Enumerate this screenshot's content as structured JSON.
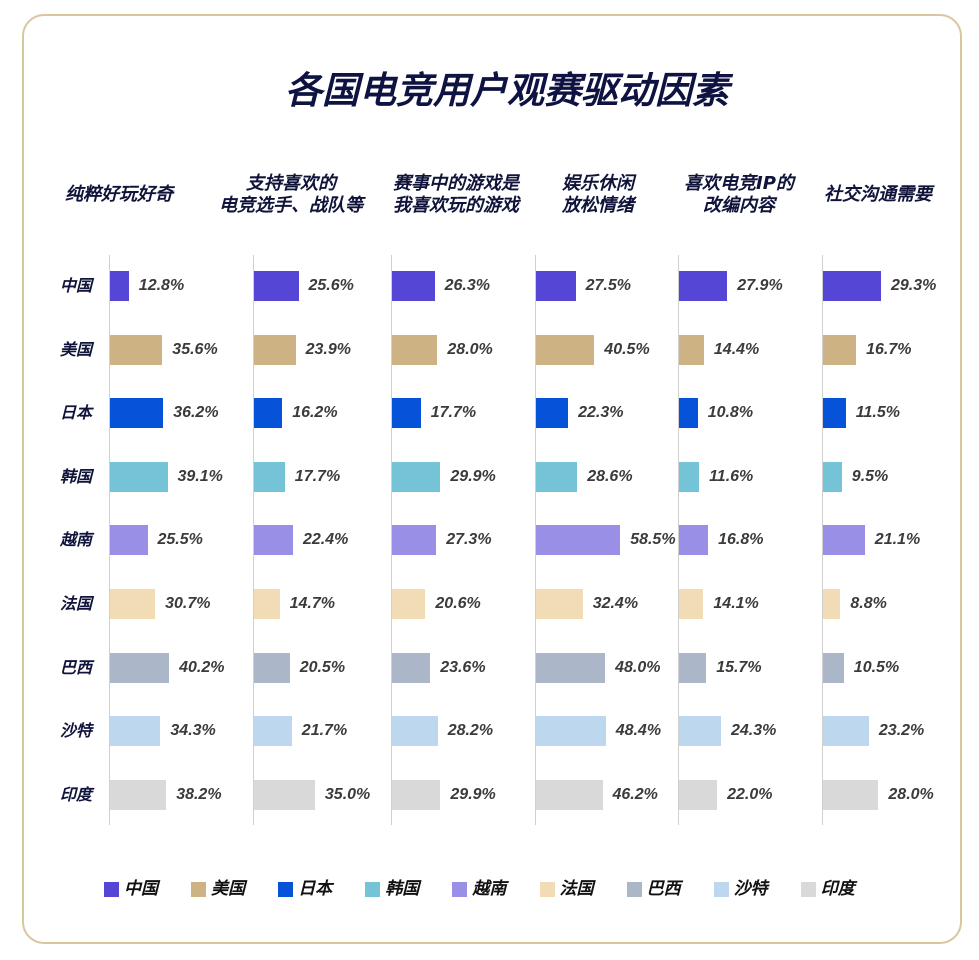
{
  "chart_data": {
    "type": "bar",
    "orientation": "horizontal",
    "title": "各国电竞用户观赛驱动因素",
    "categories": [
      "中国",
      "美国",
      "日本",
      "韩国",
      "越南",
      "法国",
      "巴西",
      "沙特",
      "印度"
    ],
    "colors": [
      "#5546D6",
      "#CDB284",
      "#0652D8",
      "#74C3D6",
      "#9A8FE6",
      "#F2DCB6",
      "#ABB6C9",
      "#BDD7EF",
      "#D9D9D9"
    ],
    "series": [
      {
        "name": "纯粹好玩好奇",
        "values": [
          12.8,
          35.6,
          36.2,
          39.1,
          25.5,
          30.7,
          40.2,
          34.3,
          38.2
        ],
        "data_labels": [
          "12.8%",
          "35.6%",
          "36.2%",
          "39.1%",
          "25.5%",
          "30.7%",
          "40.2%",
          "34.3%",
          "38.2%"
        ]
      },
      {
        "name": "支持喜欢的\n电竞选手、战队等",
        "values": [
          25.6,
          23.9,
          16.2,
          17.7,
          22.4,
          14.7,
          20.5,
          21.7,
          35.0
        ],
        "data_labels": [
          "25.6%",
          "23.9%",
          "16.2%",
          "17.7%",
          "22.4%",
          "14.7%",
          "20.5%",
          "21.7%",
          "35.0%"
        ]
      },
      {
        "name": "赛事中的游戏是\n我喜欢玩的游戏",
        "values": [
          26.3,
          28.0,
          17.7,
          29.9,
          27.3,
          20.6,
          23.6,
          28.2,
          29.9
        ],
        "data_labels": [
          "26.3%",
          "28.0%",
          "17.7%",
          "29.9%",
          "27.3%",
          "20.6%",
          "23.6%",
          "28.2%",
          "29.9%"
        ]
      },
      {
        "name": "娱乐休闲\n放松情绪",
        "values": [
          27.5,
          40.5,
          22.3,
          28.6,
          58.5,
          32.4,
          48.0,
          48.4,
          46.2
        ],
        "data_labels": [
          "27.5%",
          "40.5%",
          "22.3%",
          "28.6%",
          "58.5%",
          "32.4%",
          "48.0%",
          "48.4%",
          "46.2%"
        ]
      },
      {
        "name": "喜欢电竞IP的\n改编内容",
        "values": [
          27.9,
          14.4,
          10.8,
          11.6,
          16.8,
          14.1,
          15.7,
          24.3,
          22.0
        ],
        "data_labels": [
          "27.9%",
          "14.4%",
          "10.8%",
          "11.6%",
          "16.8%",
          "14.1%",
          "15.7%",
          "24.3%",
          "22.0%"
        ]
      },
      {
        "name": "社交沟通需要",
        "values": [
          29.3,
          16.7,
          11.5,
          9.5,
          21.1,
          8.8,
          10.5,
          23.2,
          28.0
        ],
        "data_labels": [
          "29.3%",
          "16.7%",
          "11.5%",
          "9.5%",
          "21.1%",
          "8.8%",
          "10.5%",
          "23.2%",
          "28.0%"
        ]
      }
    ],
    "grid": false,
    "legend": {
      "position": "bottom",
      "entries": [
        "中国",
        "美国",
        "日本",
        "韩国",
        "越南",
        "法国",
        "巴西",
        "沙特",
        "印度"
      ]
    }
  }
}
